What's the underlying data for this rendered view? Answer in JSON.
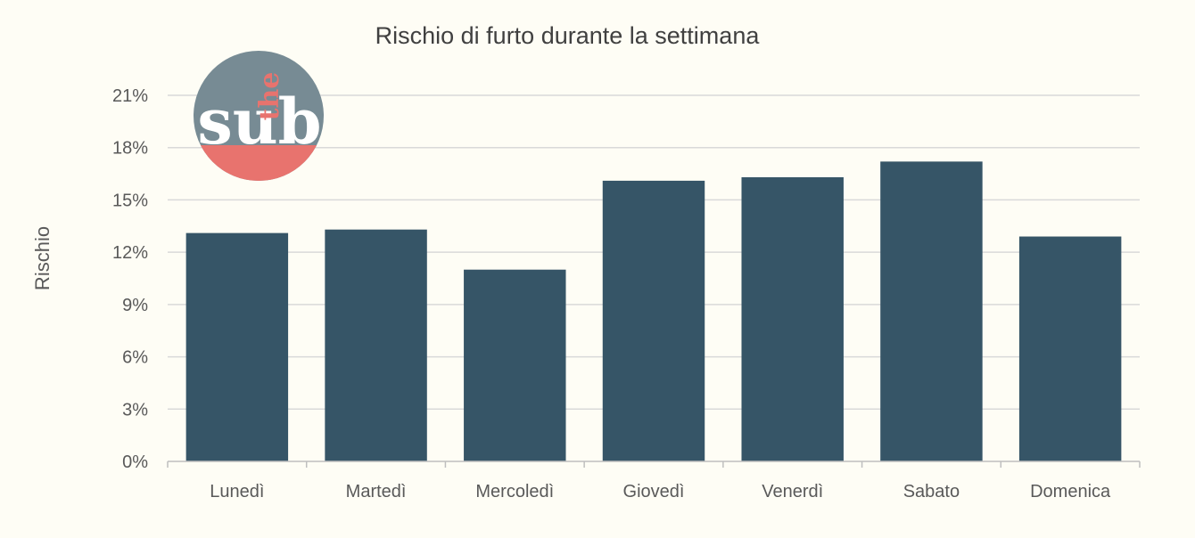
{
  "chart_data": {
    "type": "bar",
    "title": "Rischio di furto durante la settimana",
    "ylabel": "Rischio",
    "xlabel": "",
    "categories": [
      "Lunedì",
      "Martedì",
      "Mercoledì",
      "Giovedì",
      "Venerdì",
      "Sabato",
      "Domenica"
    ],
    "values": [
      13.1,
      13.3,
      11.0,
      16.1,
      16.3,
      17.2,
      12.9
    ],
    "unit": "%",
    "ylim": [
      0,
      21
    ],
    "yticks": [
      "0%",
      "3%",
      "6%",
      "9%",
      "12%",
      "15%",
      "18%",
      "21%"
    ],
    "grid": true,
    "bar_color": "#365567"
  },
  "logo": {
    "text_main": "sub",
    "text_small": "the",
    "circle_color": "#778b94",
    "accent_color": "#e8736e"
  }
}
